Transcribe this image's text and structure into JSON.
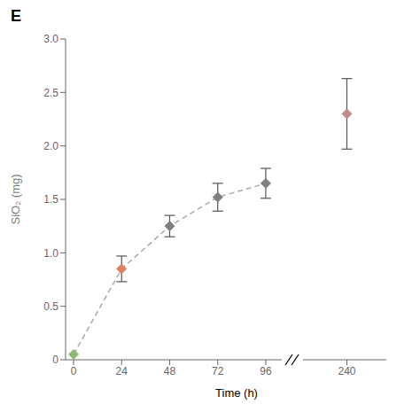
{
  "chart_data": [
    {
      "type": "line",
      "title": "E",
      "xlabel": "Time (h)",
      "ylabel": "SiO₂ (mg)",
      "x": [
        0,
        24,
        48,
        72,
        96
      ],
      "values": [
        0.05,
        0.85,
        1.25,
        1.52,
        1.65
      ],
      "errors": [
        0.0,
        0.12,
        0.1,
        0.13,
        0.14
      ],
      "colors": [
        "#8db870",
        "#e08060",
        "#808080",
        "#808080",
        "#808080"
      ],
      "color": "#aaaaaa",
      "line_style": "dashed",
      "marker": "diamond",
      "xlim": [
        -4,
        104
      ],
      "xticks": [
        0,
        24,
        48,
        72,
        96
      ],
      "ylim": [
        0,
        3.0
      ],
      "yticks": [
        0,
        0.5,
        {
          "value": 1,
          "label": "1.0"
        },
        1.5,
        {
          "value": 2,
          "label": "2.0"
        },
        2.5,
        {
          "value": 3,
          "label": "3.0"
        }
      ],
      "grid": false
    },
    {
      "type": "line",
      "x": [
        240
      ],
      "values": [
        2.3
      ],
      "errors": [
        0.33
      ],
      "colors": [
        "#c08888"
      ],
      "color": "#aaaaaa",
      "line_style": "dashed",
      "marker": "diamond",
      "xlim": [
        220,
        258
      ],
      "xticks": [
        240
      ],
      "ylim": [
        0,
        3.0
      ],
      "tick_labels": "x",
      "grid": false
    }
  ]
}
